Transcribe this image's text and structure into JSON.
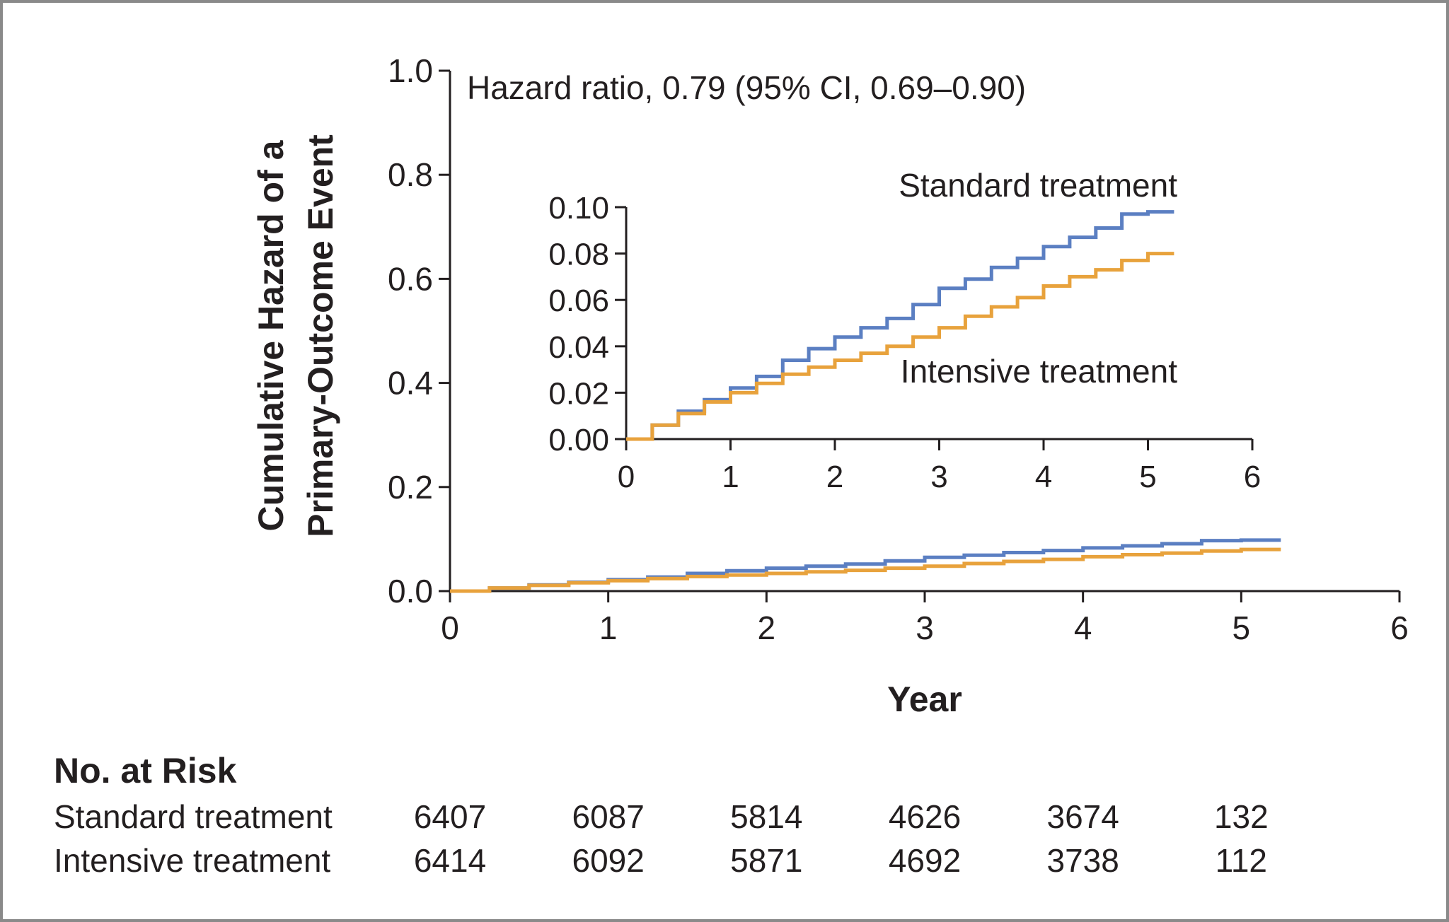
{
  "chart_data": {
    "type": "line",
    "main": {
      "ylabel": [
        "Cumulative Hazard of a",
        "Primary-Outcome Event"
      ],
      "xlabel": "Year",
      "xlim": [
        0,
        6
      ],
      "ylim": [
        0,
        1.0
      ],
      "x_ticks": [
        "0",
        "1",
        "2",
        "3",
        "4",
        "5",
        "6"
      ],
      "y_ticks": [
        "0.0",
        "0.2",
        "0.4",
        "0.6",
        "0.8",
        "1.0"
      ],
      "annotation": "Hazard ratio, 0.79 (95% CI, 0.69–0.90)",
      "series": [
        {
          "name": "Standard treatment",
          "color": "#5b7fc2",
          "x": [
            0,
            0.25,
            0.5,
            0.75,
            1.0,
            1.25,
            1.5,
            1.75,
            2.0,
            2.25,
            2.5,
            2.75,
            3.0,
            3.25,
            3.5,
            3.75,
            4.0,
            4.25,
            4.5,
            4.75,
            5.0,
            5.25
          ],
          "y": [
            0,
            0.006,
            0.012,
            0.017,
            0.022,
            0.027,
            0.034,
            0.039,
            0.044,
            0.048,
            0.052,
            0.058,
            0.065,
            0.069,
            0.074,
            0.078,
            0.083,
            0.087,
            0.091,
            0.097,
            0.098,
            0.098
          ]
        },
        {
          "name": "Intensive treatment",
          "color": "#e8a23c",
          "x": [
            0,
            0.25,
            0.5,
            0.75,
            1.0,
            1.25,
            1.5,
            1.75,
            2.0,
            2.25,
            2.5,
            2.75,
            3.0,
            3.25,
            3.5,
            3.75,
            4.0,
            4.25,
            4.5,
            4.75,
            5.0,
            5.25
          ],
          "y": [
            0,
            0.006,
            0.011,
            0.016,
            0.02,
            0.024,
            0.028,
            0.031,
            0.034,
            0.037,
            0.04,
            0.044,
            0.048,
            0.053,
            0.057,
            0.061,
            0.066,
            0.07,
            0.073,
            0.077,
            0.08,
            0.08
          ]
        }
      ]
    },
    "inset": {
      "xlim": [
        0,
        6
      ],
      "ylim": [
        0,
        0.1
      ],
      "x_ticks": [
        "0",
        "1",
        "2",
        "3",
        "4",
        "5",
        "6"
      ],
      "y_ticks": [
        "0.00",
        "0.02",
        "0.04",
        "0.06",
        "0.08",
        "0.10"
      ],
      "series_labels": [
        "Standard treatment",
        "Intensive treatment"
      ]
    },
    "risk_table": {
      "title": "No. at Risk",
      "rows": [
        {
          "label": "Standard treatment",
          "values": [
            "6407",
            "6087",
            "5814",
            "4626",
            "3674",
            "132"
          ]
        },
        {
          "label": "Intensive treatment",
          "values": [
            "6414",
            "6092",
            "5871",
            "4692",
            "3738",
            "112"
          ]
        }
      ]
    }
  }
}
